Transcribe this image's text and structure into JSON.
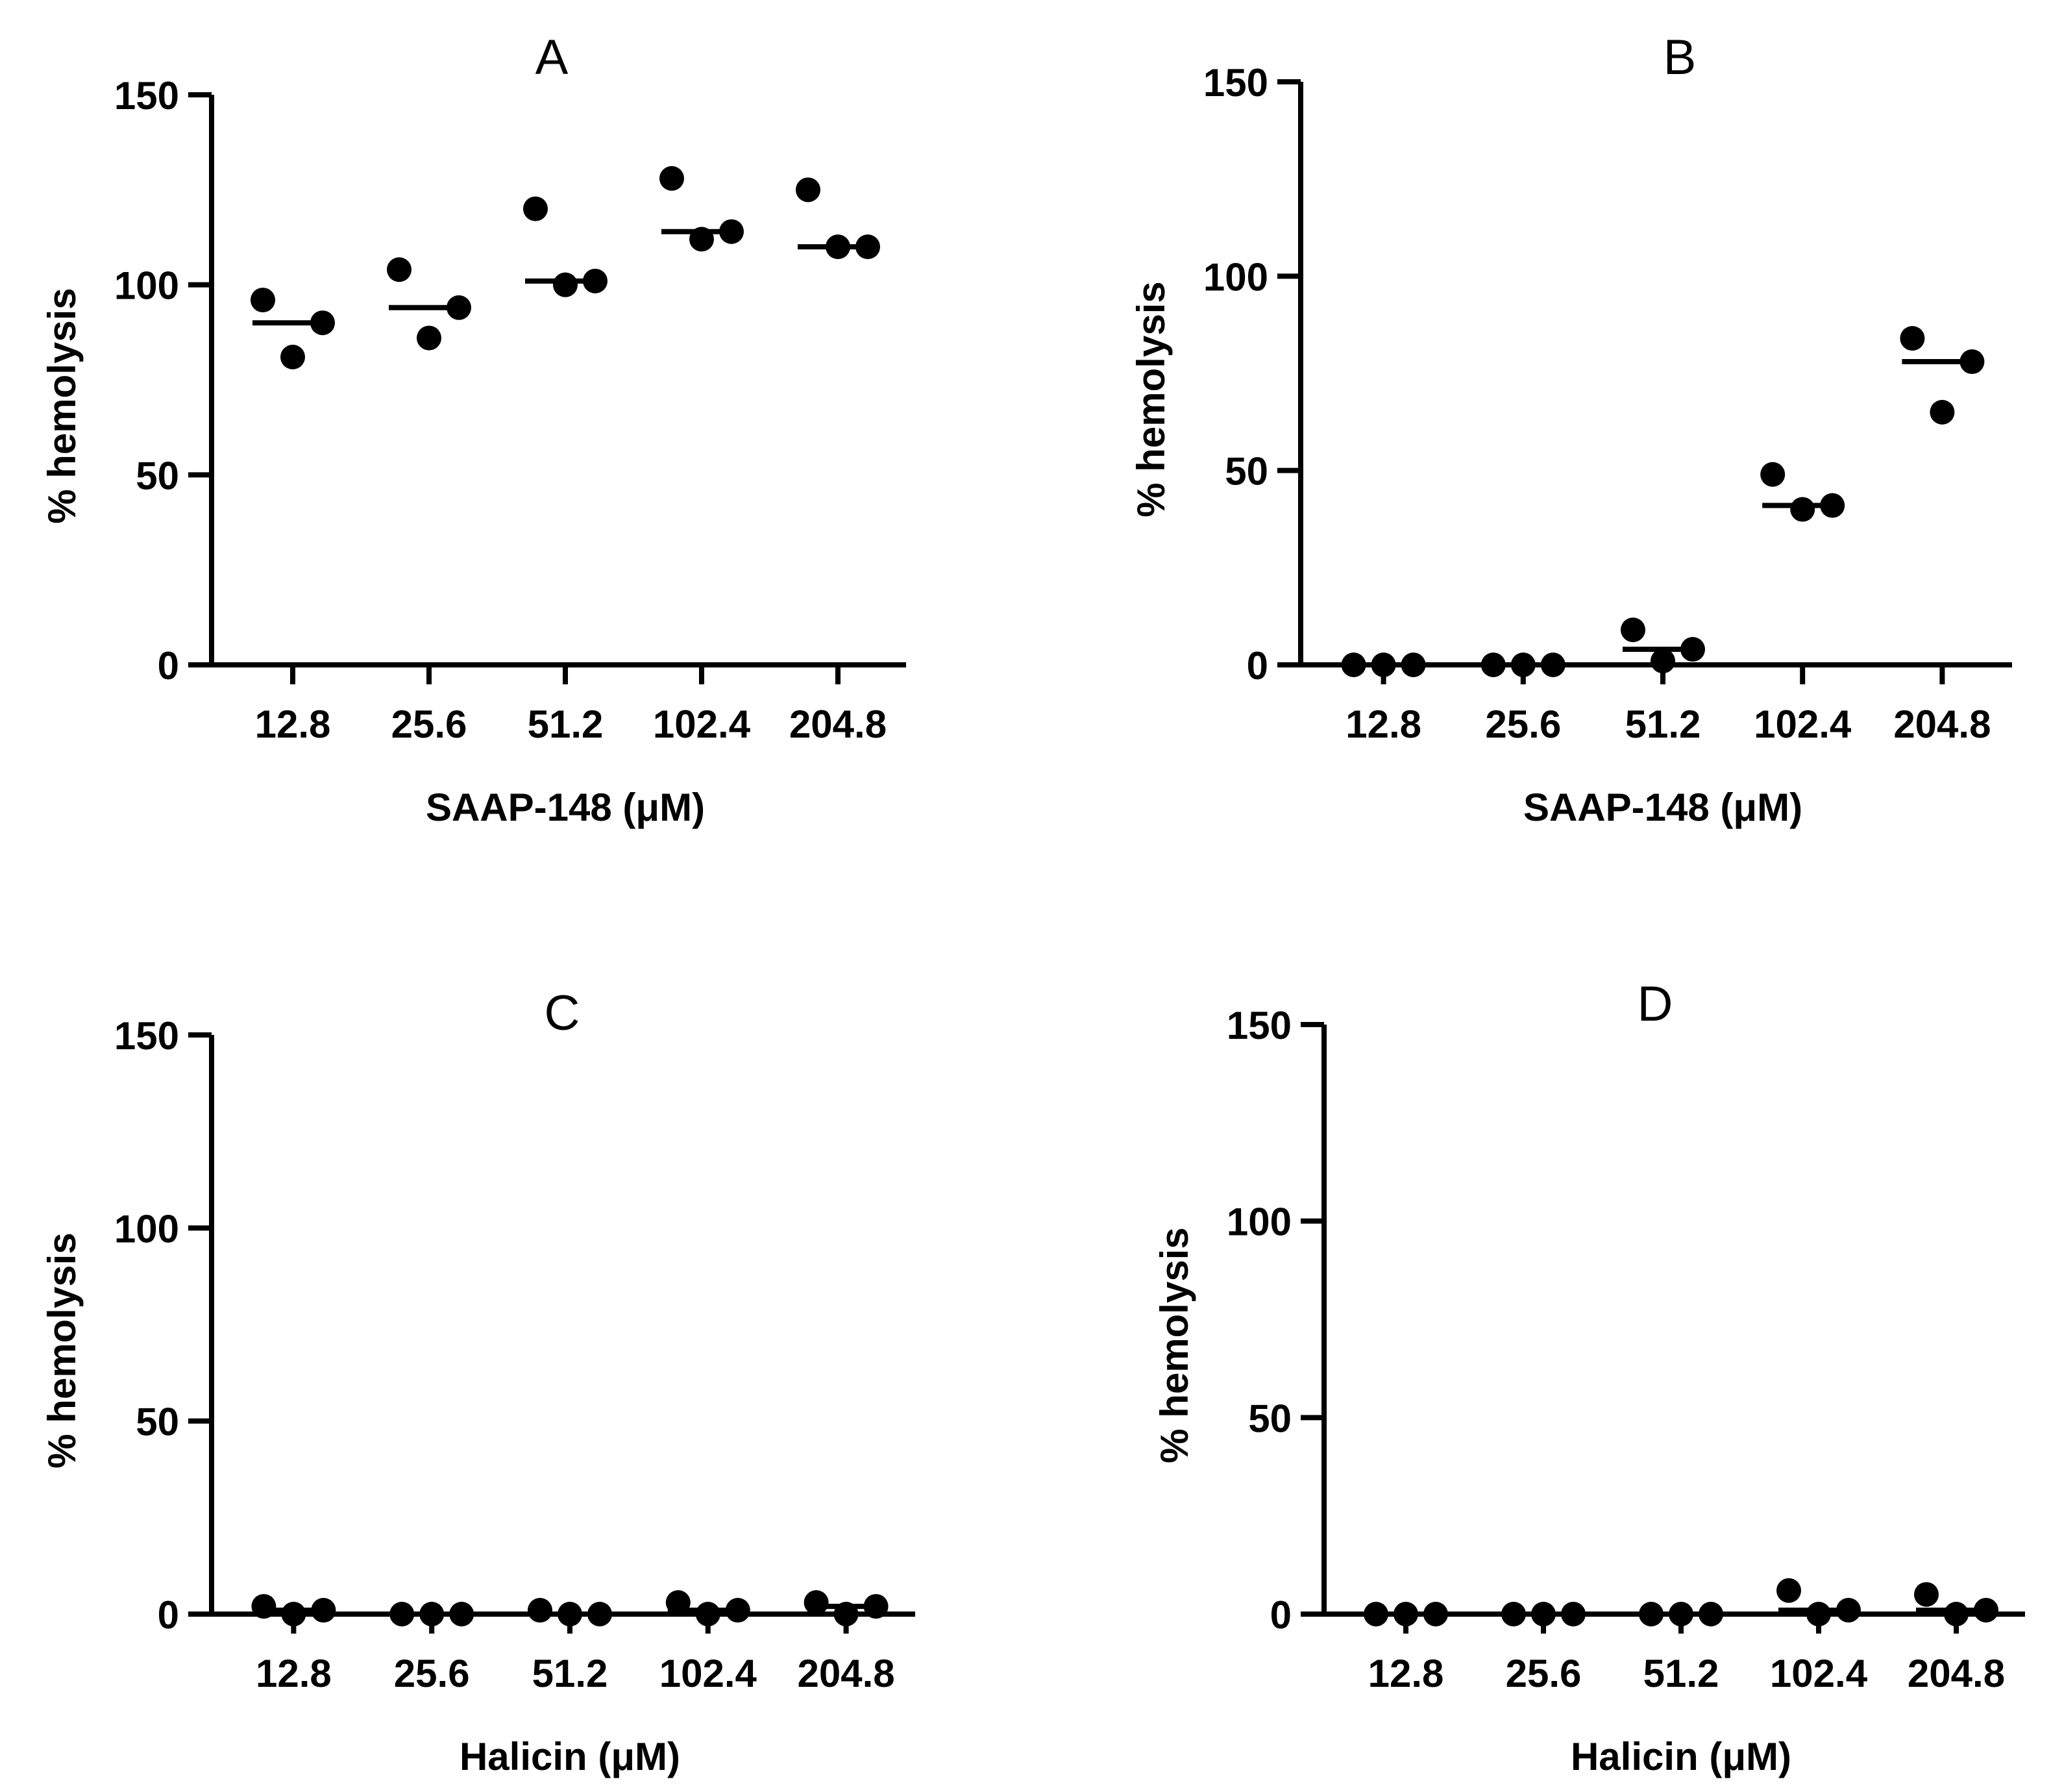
{
  "chart_data": [
    {
      "id": "A",
      "type": "scatter",
      "title": "A",
      "xlabel": "SAAP-148 (μM)",
      "ylabel": "% hemolysis",
      "categories": [
        "12.8",
        "25.6",
        "51.2",
        "102.4",
        "204.8"
      ],
      "yticks": [
        0,
        50,
        100,
        150
      ],
      "ylim": [
        0,
        150
      ],
      "points": [
        [
          96,
          81,
          90
        ],
        [
          104,
          86,
          94
        ],
        [
          120,
          100,
          101
        ],
        [
          128,
          112,
          114
        ],
        [
          125,
          110,
          110
        ]
      ],
      "medians": [
        90,
        94,
        101,
        114,
        110
      ]
    },
    {
      "id": "B",
      "type": "scatter",
      "title": "B",
      "xlabel": "SAAP-148 (μM)",
      "ylabel": "% hemolysis",
      "categories": [
        "12.8",
        "25.6",
        "51.2",
        "102.4",
        "204.8"
      ],
      "yticks": [
        0,
        50,
        100,
        150
      ],
      "ylim": [
        0,
        150
      ],
      "points": [
        [
          0,
          0,
          0
        ],
        [
          0,
          0,
          0
        ],
        [
          9,
          1,
          4
        ],
        [
          49,
          40,
          41
        ],
        [
          84,
          65,
          78
        ]
      ],
      "medians": [
        0,
        0,
        4,
        41,
        78
      ]
    },
    {
      "id": "C",
      "type": "scatter",
      "title": "C",
      "xlabel": "Halicin (μM)",
      "ylabel": "% hemolysis",
      "categories": [
        "12.8",
        "25.6",
        "51.2",
        "102.4",
        "204.8"
      ],
      "yticks": [
        0,
        50,
        100,
        150
      ],
      "ylim": [
        0,
        150
      ],
      "points": [
        [
          2,
          0,
          1
        ],
        [
          0,
          0,
          0
        ],
        [
          1,
          0,
          0
        ],
        [
          3,
          0,
          1
        ],
        [
          3,
          0,
          2
        ]
      ],
      "medians": [
        1,
        0,
        0,
        1,
        2
      ]
    },
    {
      "id": "D",
      "type": "scatter",
      "title": "D",
      "xlabel": "Halicin (μM)",
      "ylabel": "% hemolysis",
      "categories": [
        "12.8",
        "25.6",
        "51.2",
        "102.4",
        "204.8"
      ],
      "yticks": [
        0,
        50,
        100,
        150
      ],
      "ylim": [
        0,
        150
      ],
      "points": [
        [
          0,
          0,
          0
        ],
        [
          0,
          0,
          0
        ],
        [
          0,
          0,
          0
        ],
        [
          6,
          0,
          1
        ],
        [
          5,
          0,
          1
        ]
      ],
      "medians": [
        0,
        0,
        0,
        1,
        1
      ]
    }
  ]
}
